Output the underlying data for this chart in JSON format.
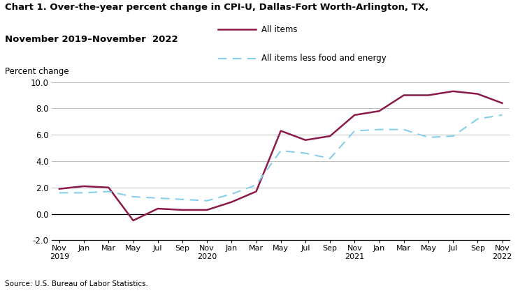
{
  "title_line1": "Chart 1. Over-the-year percent change in CPI-U, Dallas-Fort Worth-Arlington, TX,",
  "title_line2": "November 2019–November  2022",
  "ylabel": "Percent change",
  "source": "Source: U.S. Bureau of Labor Statistics.",
  "legend_all_items": "All items",
  "legend_core": "All items less food and energy",
  "ylim": [
    -2.0,
    10.0
  ],
  "yticks": [
    -2.0,
    0.0,
    2.0,
    4.0,
    6.0,
    8.0,
    10.0
  ],
  "x_labels": [
    "Nov\n2019",
    "Jan",
    "Mar",
    "May",
    "Jul",
    "Sep",
    "Nov\n2020",
    "Jan",
    "Mar",
    "May",
    "Jul",
    "Sep",
    "Nov\n2021",
    "Jan",
    "Mar",
    "May",
    "Jul",
    "Sep",
    "Nov\n2022"
  ],
  "all_items": [
    1.9,
    2.1,
    2.0,
    -0.5,
    0.4,
    0.3,
    0.3,
    0.9,
    1.7,
    6.3,
    5.6,
    5.9,
    7.5,
    7.8,
    9.0,
    9.0,
    9.3,
    9.1,
    8.4
  ],
  "core_items": [
    1.6,
    1.6,
    1.7,
    1.3,
    1.2,
    1.1,
    1.0,
    1.5,
    2.2,
    4.8,
    4.6,
    4.2,
    6.3,
    6.4,
    6.4,
    5.8,
    5.9,
    7.2,
    7.5
  ],
  "line1_color": "#8B1A4A",
  "line2_color": "#87CEEB",
  "background_color": "#ffffff",
  "grid_color": "#bbbbbb"
}
